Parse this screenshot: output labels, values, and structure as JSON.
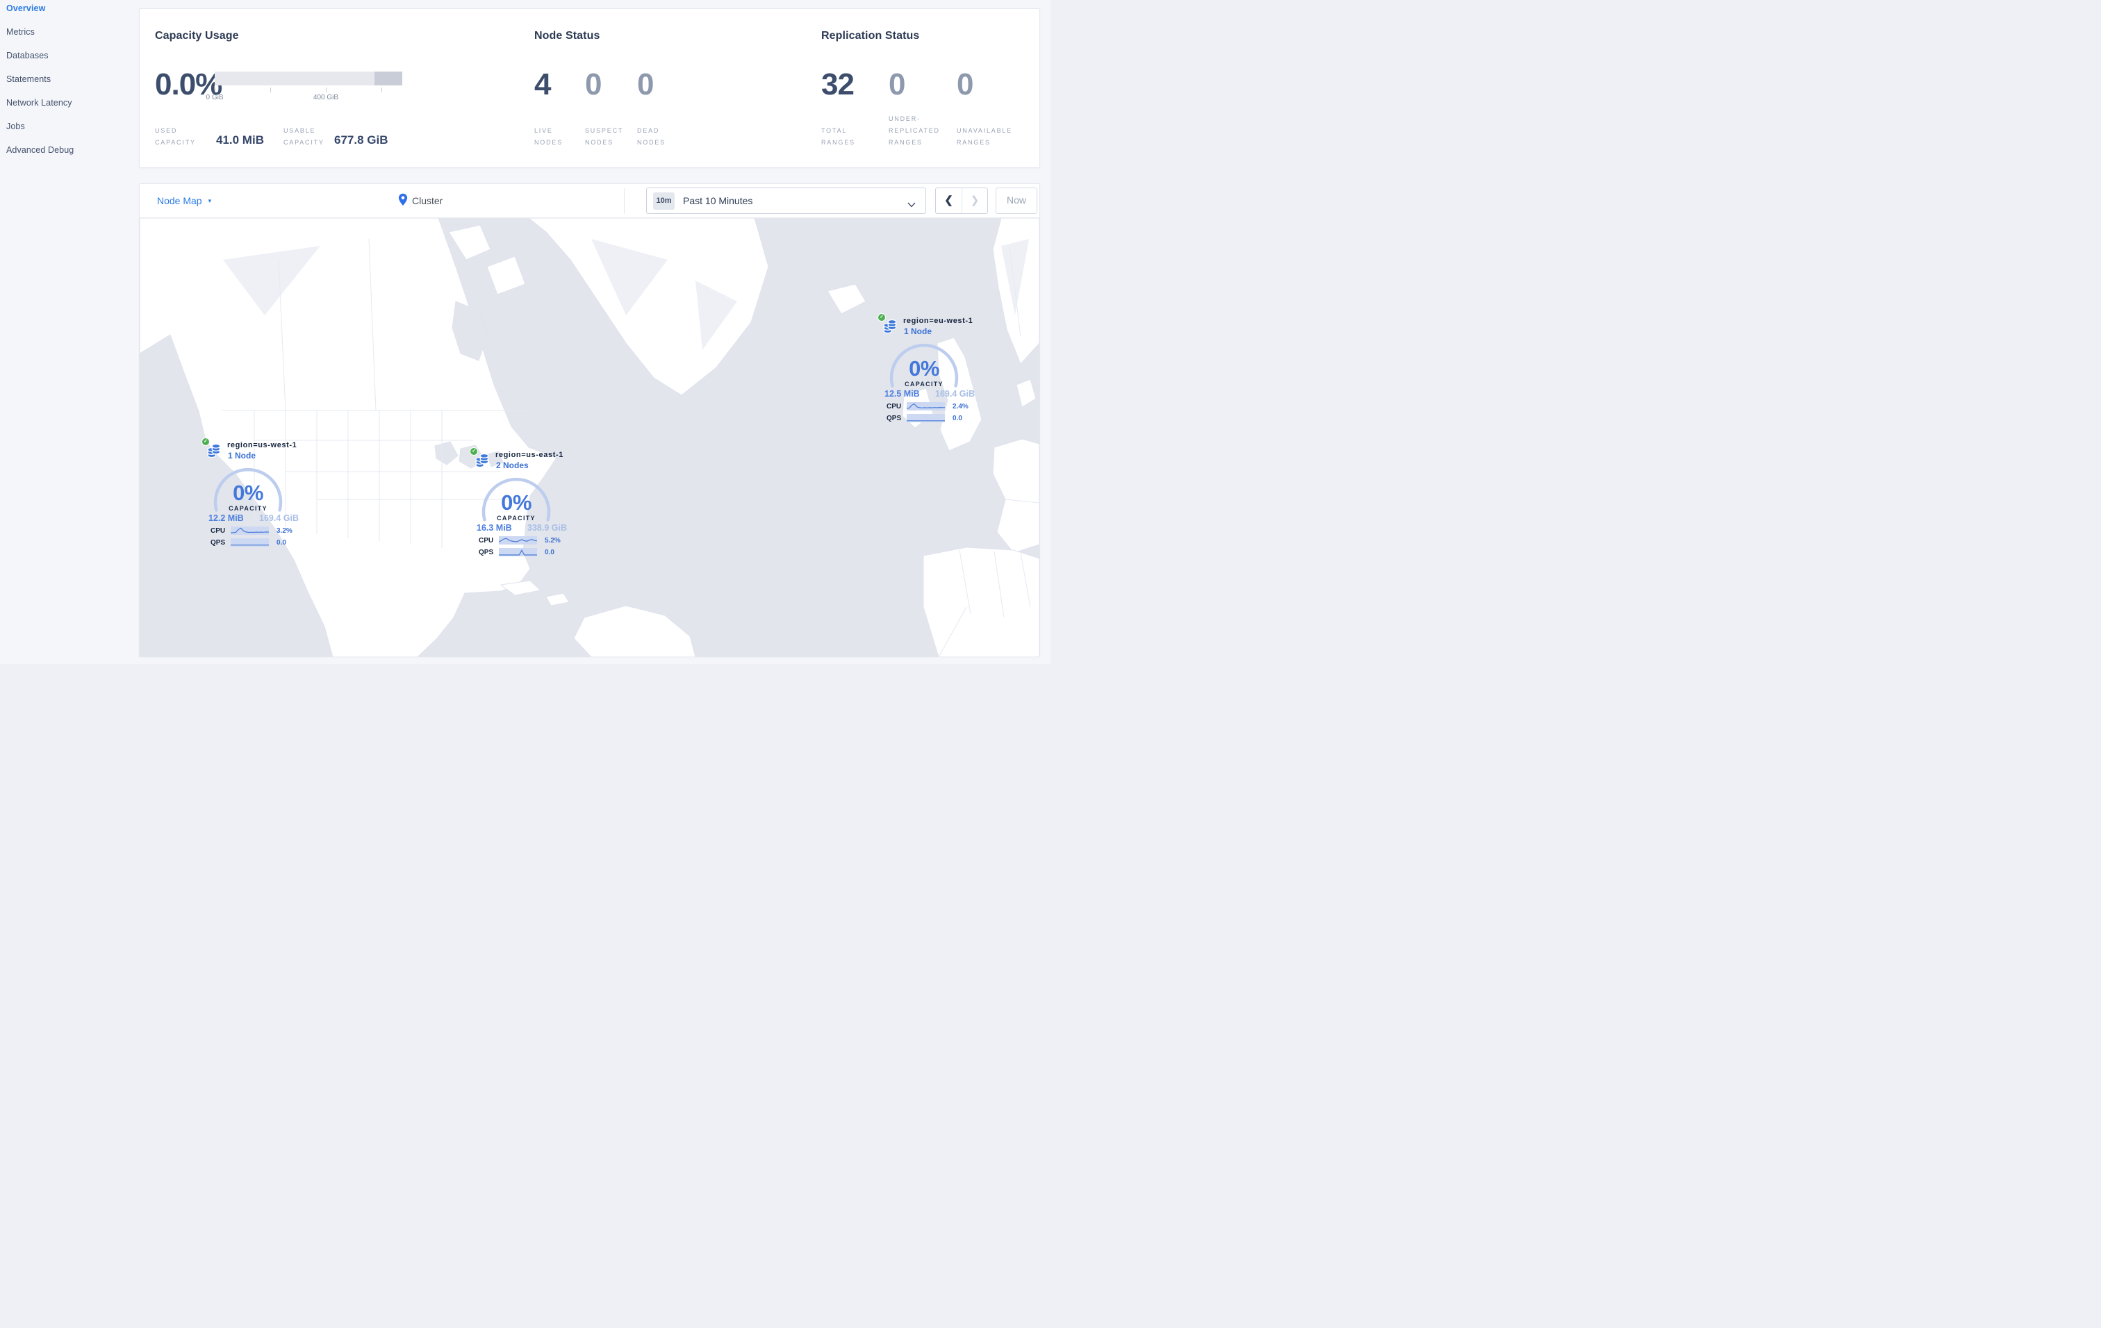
{
  "sidebar": {
    "items": [
      {
        "label": "Overview",
        "active": true
      },
      {
        "label": "Metrics",
        "active": false
      },
      {
        "label": "Databases",
        "active": false
      },
      {
        "label": "Statements",
        "active": false
      },
      {
        "label": "Network Latency",
        "active": false
      },
      {
        "label": "Jobs",
        "active": false
      },
      {
        "label": "Advanced Debug",
        "active": false
      }
    ]
  },
  "summary": {
    "capacity": {
      "title": "Capacity Usage",
      "percent": "0.0%",
      "ticks": [
        "0 GiB",
        "400 GiB"
      ],
      "used": {
        "label": "USED\nCAPACITY",
        "value": "41.0 MiB"
      },
      "usable": {
        "label": "USABLE\nCAPACITY",
        "value": "677.8 GiB"
      }
    },
    "node_status": {
      "title": "Node Status",
      "stats": [
        {
          "value": "4",
          "label": "LIVE\nNODES"
        },
        {
          "value": "0",
          "label": "SUSPECT\nNODES"
        },
        {
          "value": "0",
          "label": "DEAD\nNODES"
        }
      ]
    },
    "replication": {
      "title": "Replication Status",
      "stats": [
        {
          "value": "32",
          "label": "TOTAL\nRANGES"
        },
        {
          "value": "0",
          "label": "UNDER-\nREPLICATED\nRANGES"
        },
        {
          "value": "0",
          "label": "UNAVAILABLE\nRANGES"
        }
      ]
    }
  },
  "toolbar": {
    "view_label": "Node Map",
    "breadcrumb": "Cluster",
    "time_badge": "10m",
    "time_range": "Past 10 Minutes",
    "now_label": "Now"
  },
  "icons": {
    "caret_down": "▾",
    "chevron_left": "❮",
    "chevron_right": "❯",
    "check": "✓"
  },
  "colors": {
    "accent_blue": "#2b7ce2",
    "link_blue": "#3b71d6",
    "healthy_green": "#4caf50",
    "gauge_arc": "#bdcdee",
    "ocean": "#e2e5ec",
    "land": "#ffffff"
  },
  "map": {
    "markers": [
      {
        "title": "region=us-west-1",
        "nodes_label": "1 Node",
        "percent": "0%",
        "capacity_word": "CAPACITY",
        "used": "12.2 MiB",
        "total": "169.4 GiB",
        "cpu_label": "CPU",
        "cpu_value": "3.2%",
        "qps_label": "QPS",
        "qps_value": "0.0",
        "cpu_spark": [
          0.18,
          0.2,
          0.24,
          0.66,
          0.88,
          0.48,
          0.3,
          0.24,
          0.26,
          0.24,
          0.28,
          0.25,
          0.28,
          0.26,
          0.3,
          0.28
        ],
        "qps_spark": [
          0.1,
          0.1,
          0.1,
          0.1,
          0.1,
          0.1,
          0.1,
          0.1,
          0.1,
          0.1,
          0.1,
          0.1,
          0.1,
          0.1,
          0.1,
          0.1
        ]
      },
      {
        "title": "region=us-east-1",
        "nodes_label": "2 Nodes",
        "percent": "0%",
        "capacity_word": "CAPACITY",
        "used": "16.3 MiB",
        "total": "338.9 GiB",
        "cpu_label": "CPU",
        "cpu_value": "5.2%",
        "qps_label": "QPS",
        "qps_value": "0.0",
        "cpu_spark": [
          0.25,
          0.48,
          0.72,
          0.78,
          0.52,
          0.4,
          0.33,
          0.3,
          0.44,
          0.62,
          0.45,
          0.38,
          0.54,
          0.62,
          0.48,
          0.44
        ],
        "qps_spark": [
          0.08,
          0.08,
          0.08,
          0.08,
          0.08,
          0.08,
          0.08,
          0.08,
          0.08,
          0.78,
          0.08,
          0.08,
          0.08,
          0.08,
          0.08,
          0.08
        ]
      },
      {
        "title": "region=eu-west-1",
        "nodes_label": "1 Node",
        "percent": "0%",
        "capacity_word": "CAPACITY",
        "used": "12.5 MiB",
        "total": "169.4 GiB",
        "cpu_label": "CPU",
        "cpu_value": "2.4%",
        "qps_label": "QPS",
        "qps_value": "0.0",
        "cpu_spark": [
          0.2,
          0.24,
          0.68,
          0.86,
          0.42,
          0.3,
          0.26,
          0.3,
          0.27,
          0.3,
          0.28,
          0.32,
          0.29,
          0.33,
          0.3,
          0.32
        ],
        "qps_spark": [
          0.1,
          0.1,
          0.1,
          0.1,
          0.1,
          0.1,
          0.1,
          0.1,
          0.1,
          0.1,
          0.1,
          0.1,
          0.1,
          0.1,
          0.1,
          0.1
        ]
      }
    ]
  }
}
